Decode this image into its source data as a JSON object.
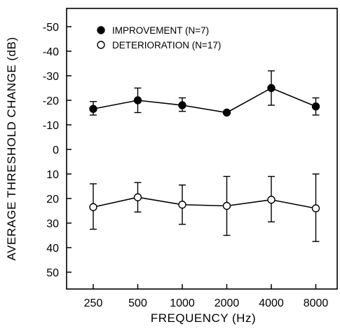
{
  "chart_data": {
    "type": "line",
    "title": "",
    "xlabel": "FREQUENCY (Hz)",
    "ylabel": "AVERAGE THRESHOLD CHANGE (dB)",
    "categories": [
      "250",
      "500",
      "1000",
      "2000",
      "4000",
      "8000"
    ],
    "ylim": [
      55,
      -55
    ],
    "y_ticks": [
      -50,
      -40,
      -30,
      -20,
      -10,
      0,
      10,
      20,
      30,
      40,
      50
    ],
    "y_tick_labels": [
      "-50",
      "-40",
      "-30",
      "-20",
      "-10",
      "0",
      "10",
      "20",
      "30",
      "40",
      "50"
    ],
    "y_inverted": true,
    "grid": false,
    "legend_position": "top-left",
    "series": [
      {
        "name": "IMPROVEMENT (N=7)",
        "marker": "filled-circle",
        "values": [
          -16.5,
          -20,
          -18,
          -15,
          -25,
          -17.5
        ],
        "error_low": [
          -14,
          -15,
          -15.5,
          -15,
          -18,
          -14
        ],
        "error_high": [
          -19.5,
          -25,
          -21,
          -15,
          -32,
          -21
        ]
      },
      {
        "name": "DETERIORATION (N=17)",
        "marker": "open-circle",
        "values": [
          23.5,
          19.5,
          22.5,
          23,
          20.5,
          24
        ],
        "error_low": [
          14,
          13.5,
          14.5,
          11,
          11,
          10
        ],
        "error_high": [
          32.5,
          25.5,
          30.5,
          35,
          29.5,
          37.5
        ]
      }
    ],
    "colors": {
      "line": "#000000",
      "filled_marker": "#000000",
      "open_marker_fill": "#ffffff"
    }
  }
}
